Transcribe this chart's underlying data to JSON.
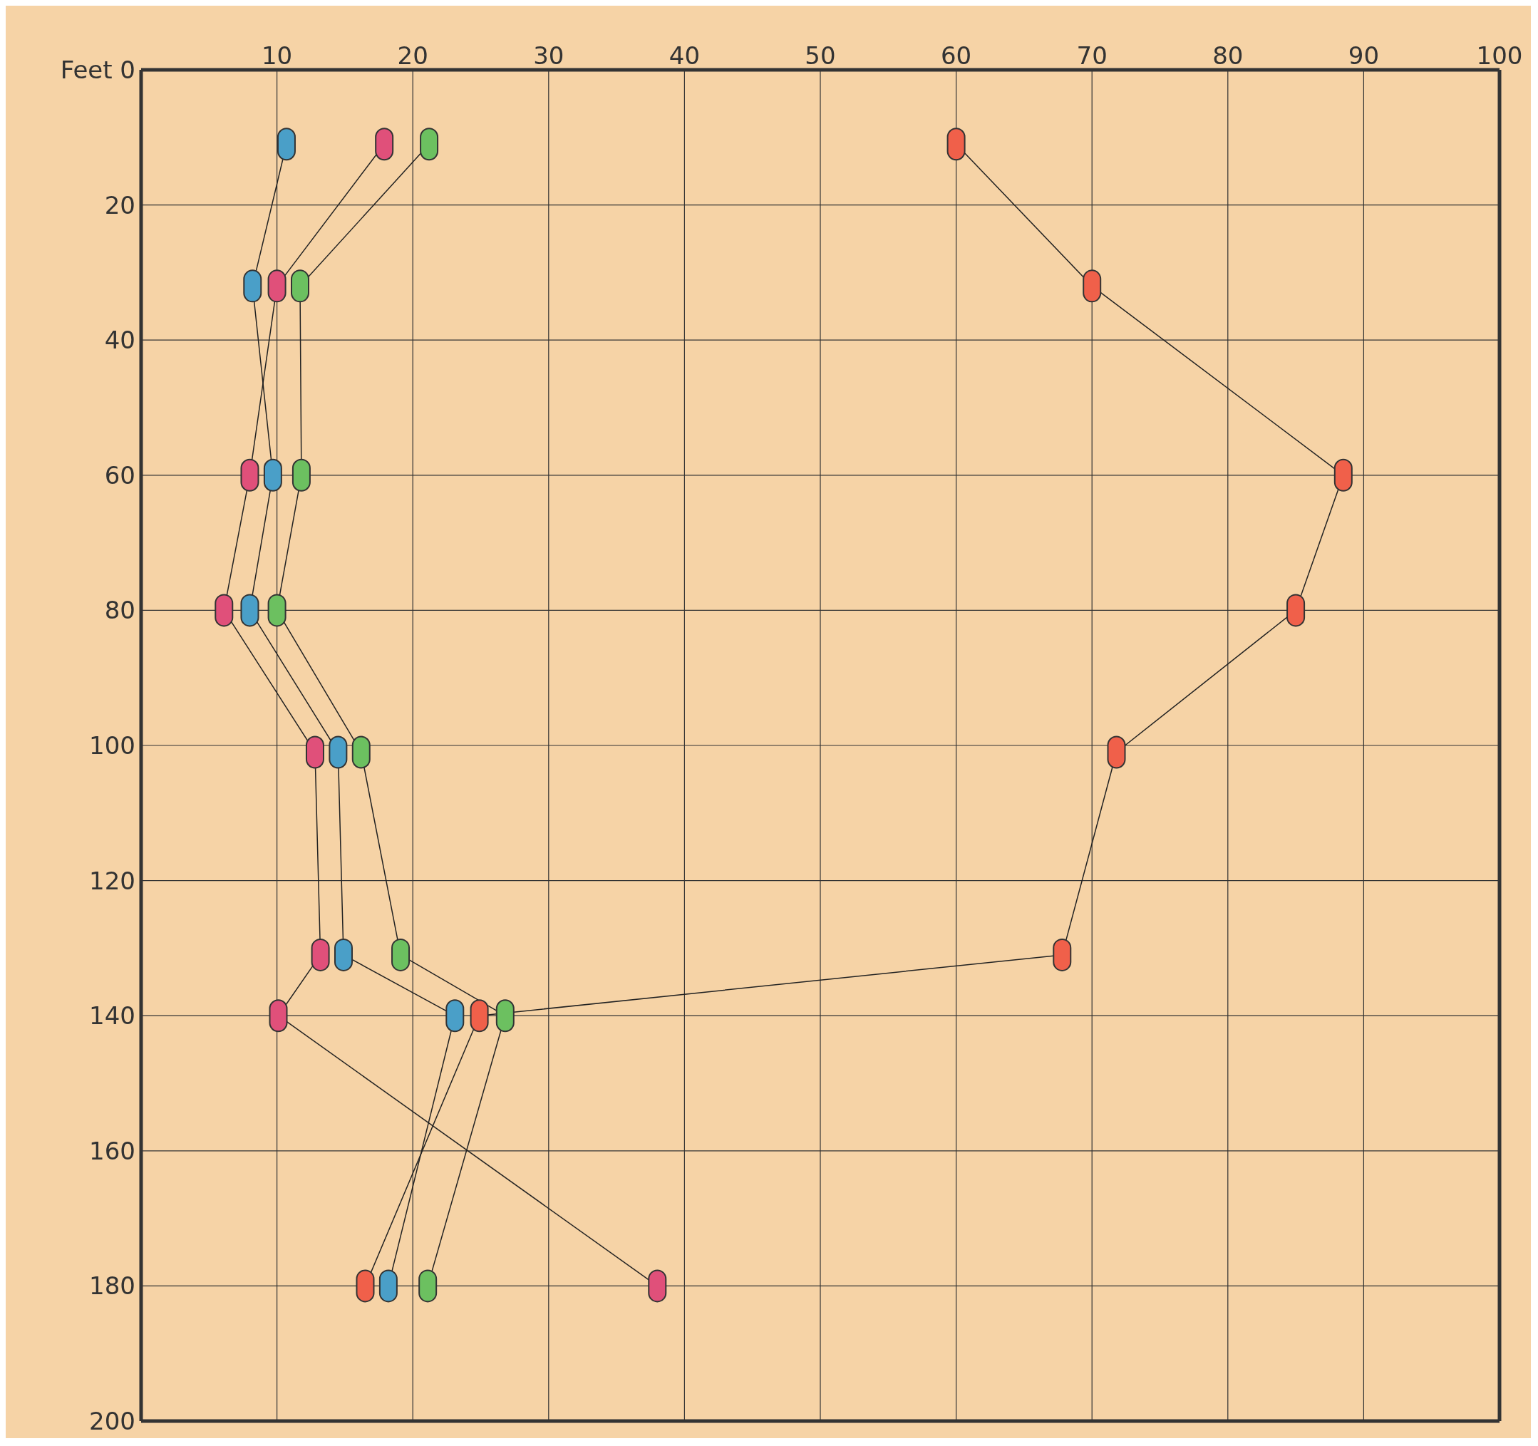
{
  "chart_data": {
    "type": "line",
    "ylim": [
      200,
      0
    ],
    "yticks": [
      {
        "value": 0,
        "label": "Feet 0"
      },
      20,
      40,
      60,
      80,
      100,
      120,
      140,
      160,
      180,
      200
    ],
    "xlim": [
      0,
      100
    ],
    "xticks": [
      {
        "value": 0,
        "label": null
      },
      10,
      20,
      30,
      40,
      50,
      60,
      70,
      80,
      90,
      100
    ],
    "grid": true,
    "marker": "square",
    "line_style": "solid",
    "series": [
      {
        "color": "#4a9fc8",
        "x": [
          10.7,
          8.2,
          9.7,
          8,
          14.5,
          14.9,
          23.1,
          18.2
        ],
        "values": [
          11,
          32,
          60,
          80,
          101,
          131,
          140,
          180
        ]
      },
      {
        "color": "#e0507a",
        "x": [
          17.9,
          10,
          8,
          6.1,
          12.8,
          13.2,
          10.1,
          38
        ],
        "values": [
          11,
          32,
          60,
          80,
          101,
          131,
          140,
          180
        ]
      },
      {
        "color": "#6cc060",
        "x": [
          21.2,
          11.7,
          11.8,
          10,
          16.2,
          19.1,
          26.8,
          21.1
        ],
        "values": [
          11,
          32,
          60,
          80,
          101,
          131,
          140,
          180
        ]
      },
      {
        "color": "#f0604a",
        "x": [
          60,
          70,
          88.5,
          85,
          71.8,
          67.8,
          24.9,
          16.5
        ],
        "values": [
          11,
          32,
          60,
          80,
          101,
          131,
          140,
          180
        ]
      }
    ]
  }
}
